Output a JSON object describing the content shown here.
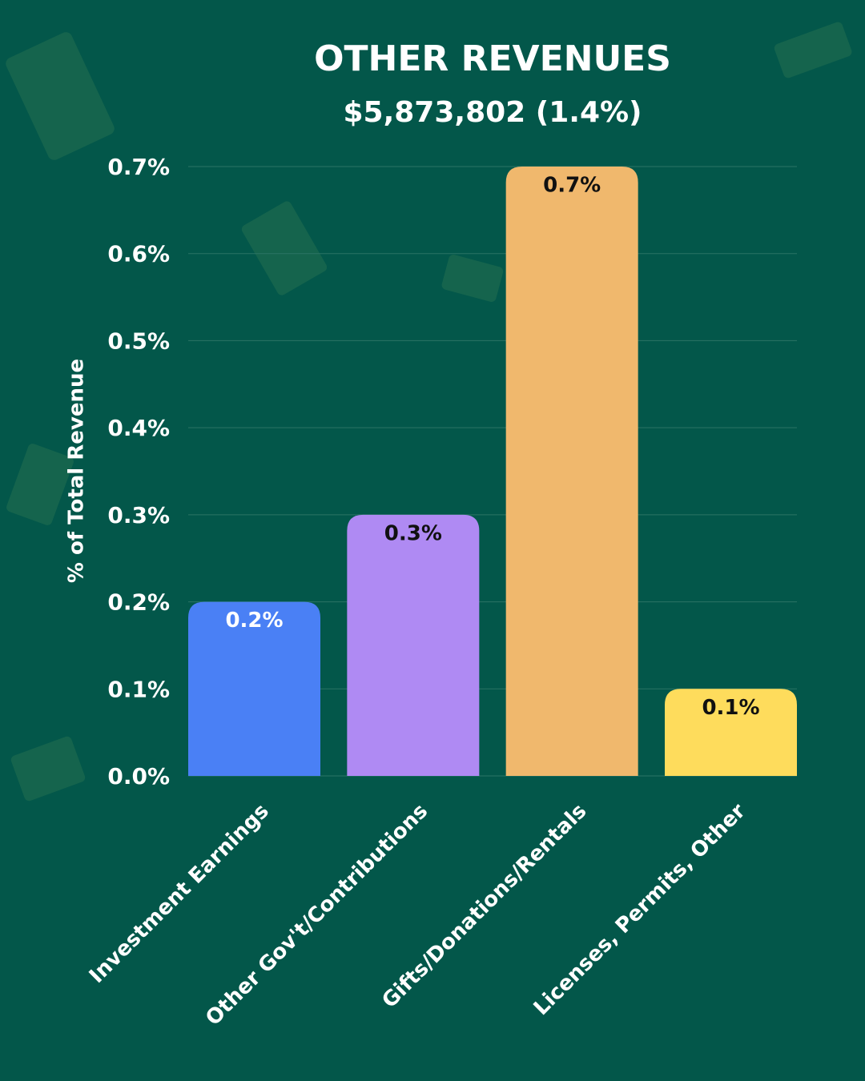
{
  "chart_data": {
    "type": "bar",
    "title": "OTHER REVENUES",
    "subtitle": "$5,873,802 (1.4%)",
    "y_label": "% of Total Revenue",
    "categories": [
      "Investment Earnings",
      "Other Gov't/Contributions",
      "Gifts/Donations/Rentals",
      "Licenses, Permits, Other"
    ],
    "values": [
      0.2,
      0.3,
      0.7,
      0.1
    ],
    "value_labels": [
      "0.2%",
      "0.3%",
      "0.7%",
      "0.1%"
    ],
    "colors": [
      "#4a80f5",
      "#af8af3",
      "#f0b86d",
      "#fedc5c"
    ],
    "ylim": [
      0,
      0.7
    ],
    "yticks": [
      {
        "value": 0,
        "label": "0.0%"
      },
      {
        "value": 0.1,
        "label": "0.1%"
      },
      {
        "value": 0.2,
        "label": "0.2%"
      },
      {
        "value": 0.3,
        "label": "0.3%"
      },
      {
        "value": 0.4,
        "label": "0.4%"
      },
      {
        "value": 0.5,
        "label": "0.5%"
      },
      {
        "value": 0.6,
        "label": "0.6%"
      },
      {
        "value": 0.7,
        "label": "0.7%"
      }
    ],
    "grid": true
  }
}
